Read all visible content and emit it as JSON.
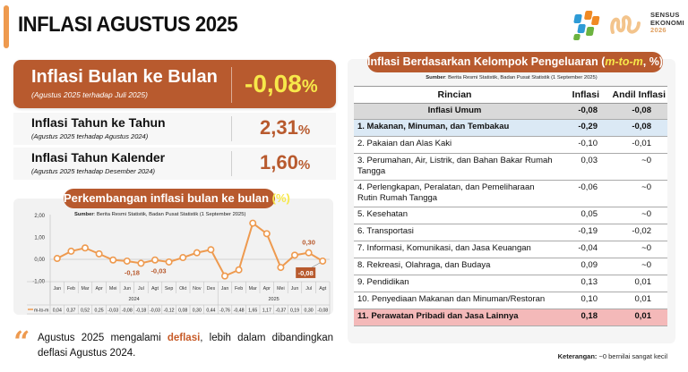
{
  "header": {
    "title": "INFLASI AGUSTUS 2025",
    "logo_text": [
      "SENSUS",
      "EKONOMI",
      "2026"
    ]
  },
  "colors": {
    "accent": "#b85a2e",
    "line": "#ee9a4f",
    "highlight_yellow": "#f7e84a",
    "blue_row": "#dbe9f5",
    "pink_row": "#f4b9b9",
    "total_row": "#d9d9d9"
  },
  "mtm": {
    "title": "Inflasi Bulan ke Bulan",
    "subtitle": "(Agustus 2025 terhadap Juli 2025)",
    "value": "-0,08",
    "unit": "%"
  },
  "yoy": {
    "title": "Inflasi Tahun ke Tahun",
    "subtitle": "(Agustus 2025 terhadap Agustus 2024)",
    "value": "2,31",
    "unit": "%"
  },
  "ytd": {
    "title": "Inflasi Tahun Kalender",
    "subtitle": "(Agustus 2025 terhadap Desember 2024)",
    "value": "1,60",
    "unit": "%"
  },
  "chart_panel": {
    "title": "Perkembangan inflasi bulan ke bulan ",
    "title_unit": "(%)",
    "source_label": "Sumber",
    "source_text": ": Berita Resmi Statistik, Badan Pusat Statistik (1 September 2025)"
  },
  "chart_data": {
    "type": "line",
    "title": "Perkembangan inflasi bulan ke bulan (%)",
    "xlabel": "",
    "ylabel": "",
    "ylim": [
      -1.0,
      2.0
    ],
    "yticks": [
      "2,00",
      "1,00",
      "0,00",
      "-1,00"
    ],
    "grid": false,
    "legend": "m-to-m",
    "legend_position": "bottom (data table)",
    "year_groups": [
      {
        "label": "2024",
        "span": 12
      },
      {
        "label": "2025",
        "span": 8
      }
    ],
    "categories": [
      "Jan",
      "Feb",
      "Mar",
      "Apr",
      "Mei",
      "Jun",
      "Jul",
      "Agt",
      "Sep",
      "Okt",
      "Nov",
      "Des",
      "Jan",
      "Feb",
      "Mar",
      "Apr",
      "Mei",
      "Jun",
      "Jul",
      "Agt"
    ],
    "series": [
      {
        "name": "m-to-m",
        "values": [
          0.04,
          0.37,
          0.52,
          0.25,
          -0.03,
          -0.08,
          -0.18,
          -0.03,
          -0.12,
          0.08,
          0.3,
          0.44,
          -0.76,
          -0.48,
          1.65,
          1.17,
          -0.37,
          0.19,
          0.3,
          -0.08
        ]
      }
    ],
    "value_labels": [
      "0,04",
      "0,37",
      "0,52",
      "0,25",
      "-0,03",
      "-0,08",
      "-0,18",
      "-0,03",
      "-0,12",
      "0,08",
      "0,30",
      "0,44",
      "-0,76",
      "-0,48",
      "1,65",
      "1,17",
      "-0,37",
      "0,19",
      "0,30",
      "-0,08"
    ],
    "annotations": [
      {
        "index": 6,
        "text": "-0,18"
      },
      {
        "index": 7,
        "text": "-0,03"
      },
      {
        "index": 18,
        "text": "0,30"
      },
      {
        "index": 19,
        "text": "-0,08",
        "boxed": true
      }
    ]
  },
  "quote": {
    "before": "Agustus 2025 mengalami ",
    "highlight": "deflasi",
    "after": ", lebih dalam dibandingkan deflasi Agustus 2024."
  },
  "table_panel": {
    "title_before": "Inflasi Berdasarkan Kelompok Pengeluaran (",
    "title_highlight": "m-to-m",
    "title_after": ", %)",
    "source_label": "Sumber",
    "source_text": ": Berita Resmi Statistik, Badan Pusat Statistik (1 September 2025)",
    "headers": [
      "Rincian",
      "Inflasi",
      "Andil Inflasi"
    ],
    "total": {
      "label": "Inflasi Umum",
      "inflasi": "-0,08",
      "andil": "-0,08"
    },
    "rows": [
      {
        "label": "1.  Makanan, Minuman, dan Tembakau",
        "inflasi": "-0,29",
        "andil": "-0,08"
      },
      {
        "label": "2.  Pakaian dan Alas Kaki",
        "inflasi": "-0,10",
        "andil": "-0,01"
      },
      {
        "label": "3.  Perumahan, Air, Listrik, dan Bahan Bakar Rumah Tangga",
        "inflasi": "0,03",
        "andil": "~0"
      },
      {
        "label": "4.  Perlengkapan, Peralatan, dan Pemeliharaan Rutin Rumah Tangga",
        "inflasi": "-0,06",
        "andil": "~0"
      },
      {
        "label": "5.  Kesehatan",
        "inflasi": "0,05",
        "andil": "~0"
      },
      {
        "label": "6.  Transportasi",
        "inflasi": "-0,19",
        "andil": "-0,02"
      },
      {
        "label": "7.  Informasi, Komunikasi, dan Jasa Keuangan",
        "inflasi": "-0,04",
        "andil": "~0"
      },
      {
        "label": "8.  Rekreasi, Olahraga, dan Budaya",
        "inflasi": "0,09",
        "andil": "~0"
      },
      {
        "label": "9.  Pendidikan",
        "inflasi": "0,13",
        "andil": "0,01"
      },
      {
        "label": "10. Penyediaan Makanan dan Minuman/Restoran",
        "inflasi": "0,10",
        "andil": "0,01"
      },
      {
        "label": "11. Perawatan Pribadi dan Jasa Lainnya",
        "inflasi": "0,18",
        "andil": "0,01"
      }
    ],
    "note_label": "Keterangan:",
    "note_text": " ~0 bernilai sangat kecil"
  }
}
